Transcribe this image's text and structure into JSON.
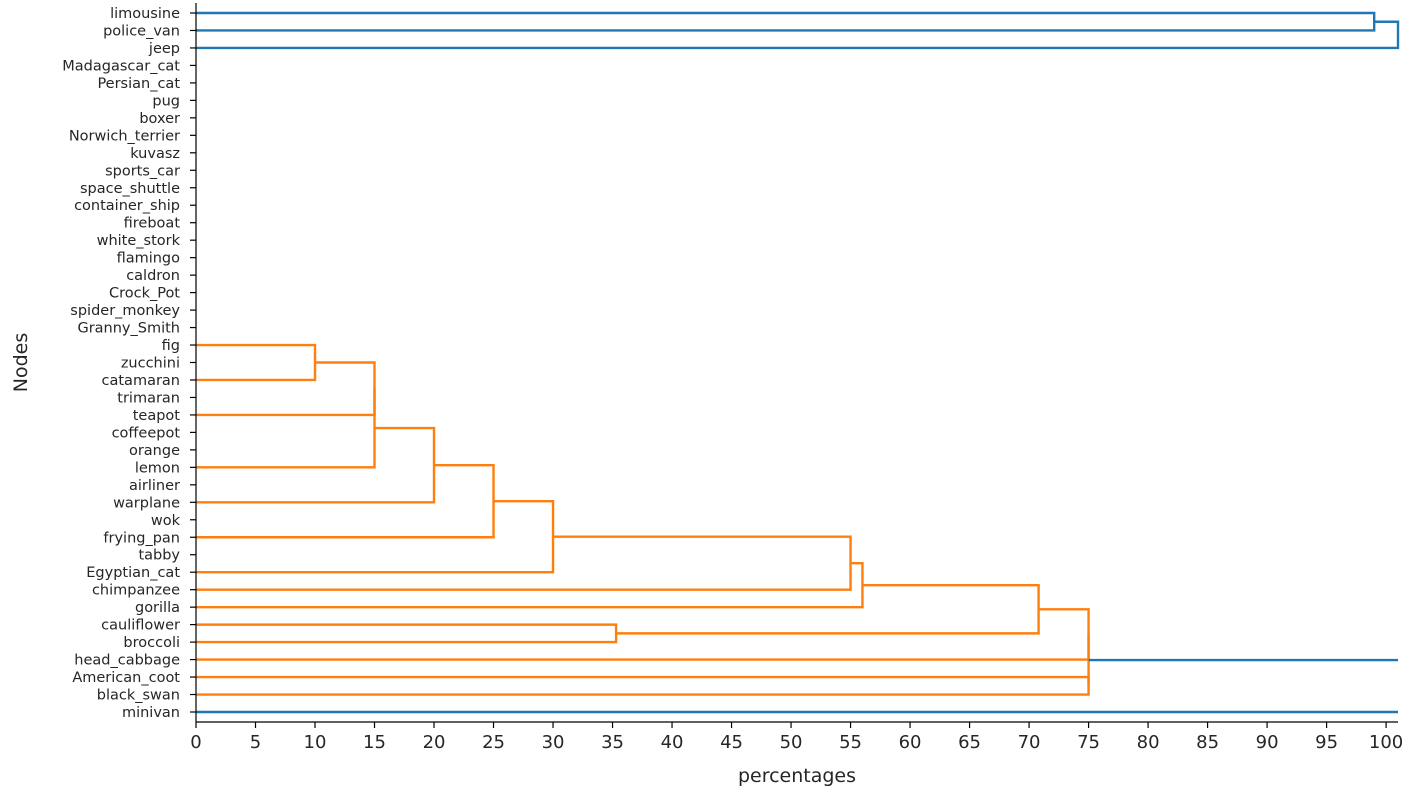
{
  "chart_data": {
    "type": "dendrogram",
    "orientation": "left",
    "xlabel": "percentages",
    "ylabel": "Nodes",
    "xlim": [
      0,
      101
    ],
    "xticks": [
      0,
      5,
      10,
      15,
      20,
      25,
      30,
      35,
      40,
      45,
      50,
      55,
      60,
      65,
      70,
      75,
      80,
      85,
      90,
      95,
      100
    ],
    "leaves": [
      "limousine",
      "police_van",
      "jeep",
      "Madagascar_cat",
      "Persian_cat",
      "pug",
      "boxer",
      "Norwich_terrier",
      "kuvasz",
      "sports_car",
      "space_shuttle",
      "container_ship",
      "fireboat",
      "white_stork",
      "flamingo",
      "caldron",
      "Crock_Pot",
      "spider_monkey",
      "Granny_Smith",
      "fig",
      "zucchini",
      "catamaran",
      "trimaran",
      "teapot",
      "coffeepot",
      "orange",
      "lemon",
      "airliner",
      "warplane",
      "wok",
      "frying_pan",
      "tabby",
      "Egyptian_cat",
      "chimpanzee",
      "gorilla",
      "cauliflower",
      "broccoli",
      "head_cabbage",
      "American_coot",
      "black_swan",
      "minivan"
    ],
    "colors": {
      "cluster": "#ff7f0e",
      "above_threshold": "#1f77b4",
      "axis": "#000000"
    },
    "links": [
      {
        "left": "limousine",
        "right": "police_van",
        "height": 99,
        "color": "above_threshold"
      },
      {
        "left": "limousine+police_van",
        "right": "jeep",
        "height": 101,
        "color": "above_threshold"
      },
      {
        "left": "fig",
        "right": "catamaran",
        "height": 10,
        "color": "cluster"
      },
      {
        "left": "fig+catamaran",
        "right": "teapot",
        "height": 15,
        "color": "cluster"
      },
      {
        "left": "fig+catamaran+teapot",
        "right": "lemon",
        "height": 15,
        "color": "cluster"
      },
      {
        "left": "fig..lemon",
        "right": "warplane",
        "height": 20,
        "color": "cluster"
      },
      {
        "left": "fig..warplane",
        "right": "frying_pan",
        "height": 25,
        "color": "cluster"
      },
      {
        "left": "fig..frying_pan",
        "right": "Egyptian_cat",
        "height": 30,
        "color": "cluster"
      },
      {
        "left": "fig..Egyptian_cat",
        "right": "chimpanzee",
        "height": 55,
        "color": "cluster"
      },
      {
        "left": "fig..chimpanzee",
        "right": "gorilla",
        "height": 56,
        "color": "cluster"
      },
      {
        "left": "cauliflower",
        "right": "broccoli",
        "height": 35.3,
        "color": "cluster"
      },
      {
        "left": "fig..gorilla",
        "right": "cauliflower+broccoli",
        "height": 70.8,
        "color": "cluster"
      },
      {
        "left": "fig..broccoli",
        "right": "head_cabbage",
        "height": 75,
        "color": "cluster"
      },
      {
        "left": "American_coot",
        "right": "black_swan",
        "height": 75,
        "color": "cluster"
      },
      {
        "left": "orange-cluster",
        "right": "minivan",
        "height": 101,
        "color": "above_threshold"
      }
    ]
  }
}
